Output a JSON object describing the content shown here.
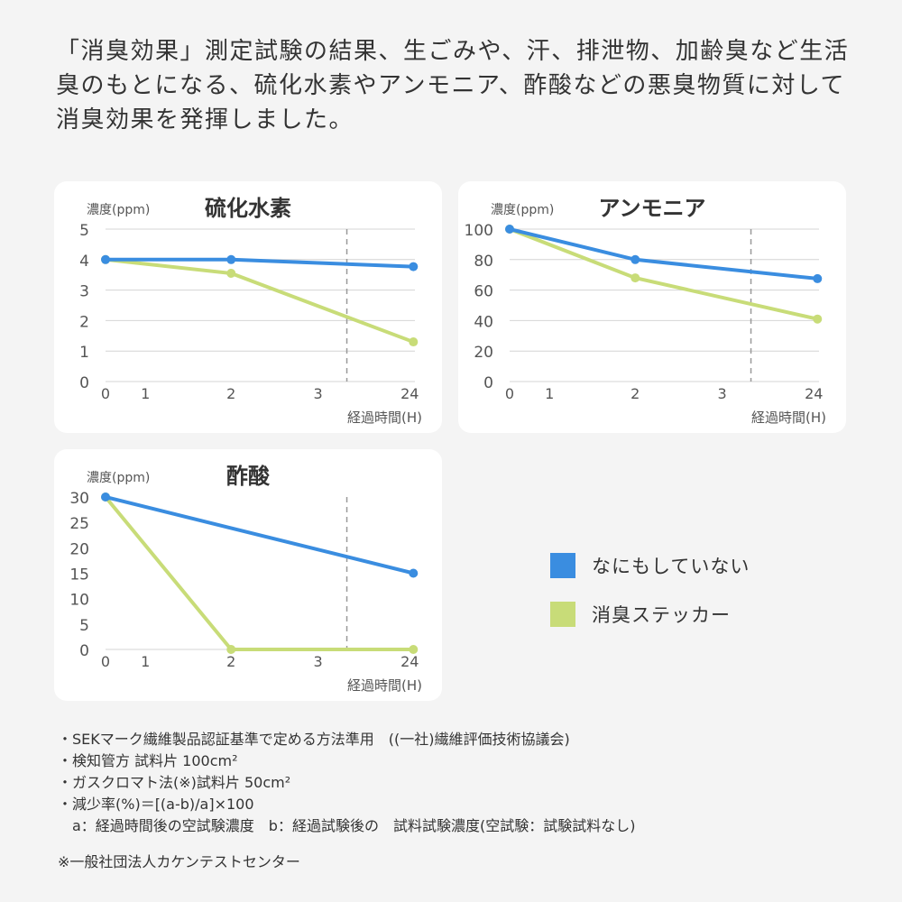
{
  "intro": "「消臭効果」測定試験の結果、生ごみや、汗、排泄物、加齢臭など生活臭のもとになる、硫化水素やアンモニア、酢酸などの悪臭物質に対して消臭効果を発揮しました。",
  "legend": [
    {
      "label": "なにもしていない",
      "color": "#3a8de0"
    },
    {
      "label": "消臭ステッカー",
      "color": "#c8dc78"
    }
  ],
  "chart_data": [
    {
      "type": "line",
      "title": "硫化水素",
      "ylabel": "濃度(ppm)",
      "xlabel": "経過時間(H)",
      "ylim": [
        0,
        5
      ],
      "yticks": [
        "0",
        "1",
        "2",
        "3",
        "4",
        "5"
      ],
      "xticks": [
        "0",
        "1",
        "2",
        "3",
        "24"
      ],
      "x": [
        "0",
        "2",
        "24"
      ],
      "grid": true,
      "series": [
        {
          "name": "なにもしていない",
          "values": [
            4.0,
            4.0,
            3.77
          ]
        },
        {
          "name": "消臭ステッカー",
          "values": [
            4.0,
            3.55,
            1.3
          ]
        }
      ]
    },
    {
      "type": "line",
      "title": "アンモニア",
      "ylabel": "濃度(ppm)",
      "xlabel": "経過時間(H)",
      "ylim": [
        0,
        100
      ],
      "yticks": [
        "0",
        "20",
        "40",
        "60",
        "80",
        "100"
      ],
      "xticks": [
        "0",
        "1",
        "2",
        "3",
        "24"
      ],
      "x": [
        "0",
        "2",
        "24"
      ],
      "grid": true,
      "series": [
        {
          "name": "なにもしていない",
          "values": [
            100,
            80,
            67.5
          ]
        },
        {
          "name": "消臭ステッカー",
          "values": [
            100,
            68,
            41
          ]
        }
      ]
    },
    {
      "type": "line",
      "title": "酢酸",
      "ylabel": "濃度(ppm)",
      "xlabel": "経過時間(H)",
      "ylim": [
        0,
        30
      ],
      "yticks": [
        "0",
        "5",
        "10",
        "15",
        "20",
        "25",
        "30"
      ],
      "xticks": [
        "0",
        "1",
        "2",
        "3",
        "24"
      ],
      "x": [
        "0",
        "2",
        "24"
      ],
      "grid": false,
      "series": [
        {
          "name": "なにもしていない",
          "values": [
            30,
            null,
            15
          ]
        },
        {
          "name": "消臭ステッカー",
          "values": [
            30,
            0,
            0
          ]
        }
      ]
    }
  ],
  "notes": [
    "・SEKマーク繊維製品認証基準で定める方法準用　((一社)繊維評価技術協議会)",
    "・検知管方 試料片 100cm²",
    "・ガスクロマト法(※)試料片 50cm²",
    "・減少率(%)＝[(a-b)/a]×100",
    "　a：経過時間後の空試験濃度　b：経過試験後の　試料試験濃度(空試験：試験試料なし)",
    "",
    "※一般社団法人カケンテストセンター"
  ]
}
